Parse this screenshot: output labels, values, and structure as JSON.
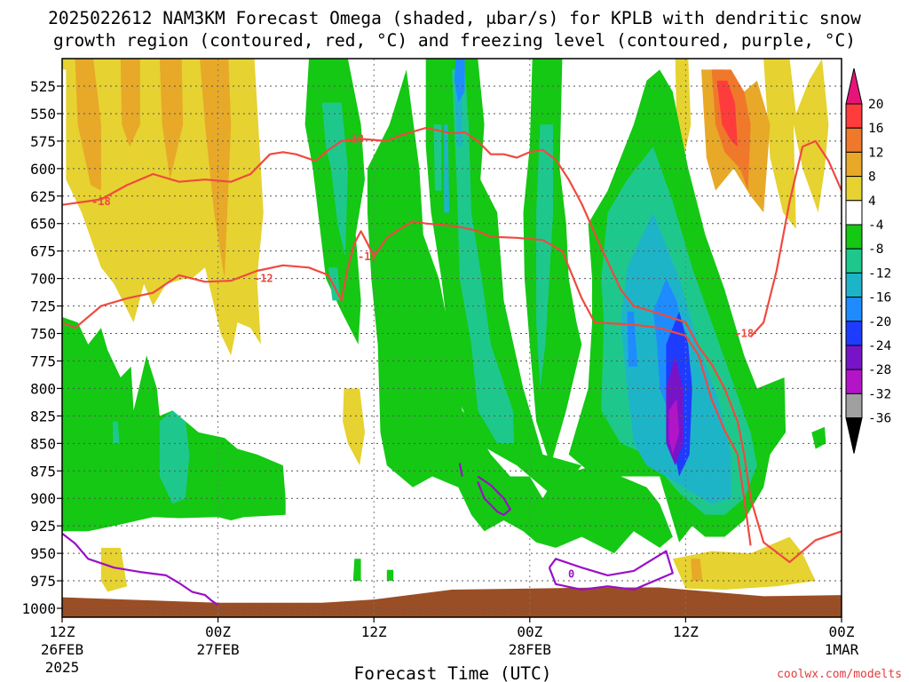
{
  "title": {
    "line1": "2025022612 NAM3KM Forecast Omega (shaded, μbar/s) for KPLB with dendritic snow",
    "line2": "growth region (contoured, red, °C) and freezing level (contoured, purple, °C)"
  },
  "xlabel": "Forecast Time (UTC)",
  "credit": "coolwx.com/modelts",
  "colors": {
    "ground": "#9a4e26",
    "dendritic_contour": "#ef4a40",
    "freezing_contour": "#9a10c6"
  },
  "chart_data": {
    "type": "heatmap",
    "title": "2025022612 NAM3KM Forecast Omega (shaded, μbar/s) for KPLB with dendritic snow growth region (contoured, red, °C) and freezing level (contoured, purple, °C)",
    "xlabel": "Forecast Time (UTC)",
    "ylabel": "",
    "x_ticks": [
      {
        "hour": 0,
        "label": "12Z",
        "sub": "26FEB",
        "sub2": "2025"
      },
      {
        "hour": 12,
        "label": "00Z",
        "sub": "27FEB",
        "sub2": ""
      },
      {
        "hour": 24,
        "label": "12Z",
        "sub": "",
        "sub2": ""
      },
      {
        "hour": 36,
        "label": "00Z",
        "sub": "28FEB",
        "sub2": ""
      },
      {
        "hour": 48,
        "label": "12Z",
        "sub": "",
        "sub2": ""
      },
      {
        "hour": 60,
        "label": "00Z",
        "sub": "1MAR",
        "sub2": ""
      }
    ],
    "xlim_hours": [
      0,
      60
    ],
    "y_ticks": [
      525,
      550,
      575,
      600,
      625,
      650,
      675,
      700,
      725,
      750,
      775,
      800,
      825,
      850,
      875,
      900,
      925,
      950,
      975,
      1000
    ],
    "ylim_hpa": [
      500,
      1005
    ],
    "y_inverted": true,
    "grid": true,
    "colorbar": {
      "labels": [
        "20",
        "16",
        "12",
        "8",
        "4",
        "-4",
        "-8",
        "-12",
        "-16",
        "-20",
        "-24",
        "-28",
        "-32",
        "-36"
      ],
      "bins": [
        {
          "range": "16 to 20",
          "color": "#ff3c3c"
        },
        {
          "range": "12 to 16",
          "color": "#f0782a"
        },
        {
          "range": "8 to 12",
          "color": "#e8a828"
        },
        {
          "range": "4 to 8",
          "color": "#e6d230"
        },
        {
          "range": "-4 to 4",
          "color": "#ffffff"
        },
        {
          "range": "-8 to -4",
          "color": "#14c814"
        },
        {
          "range": "-12 to -8",
          "color": "#1ec88c"
        },
        {
          "range": "-16 to -12",
          "color": "#1eb4c8"
        },
        {
          "range": "-20 to -16",
          "color": "#1e8cff"
        },
        {
          "range": "-24 to -20",
          "color": "#1e3cff"
        },
        {
          "range": "-28 to -24",
          "color": "#7814c8"
        },
        {
          "range": "-32 to -28",
          "color": "#b414c8"
        },
        {
          "range": "-36 to -32",
          "color": "#a0a0a0"
        }
      ],
      "max_arrow_color": "#e6147a",
      "min_arrow_color": "#000000"
    },
    "contours": {
      "dendritic": {
        "color": "#ef4a40",
        "levels": [
          {
            "label": "-18",
            "points": [
              [
                0,
                633
              ],
              [
                3,
                628
              ],
              [
                5,
                615
              ],
              [
                7,
                605
              ],
              [
                9,
                612
              ],
              [
                11,
                610
              ],
              [
                13,
                612
              ],
              [
                14.5,
                605
              ],
              [
                16,
                587
              ],
              [
                17,
                585
              ],
              [
                18,
                587
              ],
              [
                19.5,
                593
              ],
              [
                20.5,
                583
              ],
              [
                21.5,
                575
              ],
              [
                23,
                573
              ],
              [
                25,
                575
              ],
              [
                26,
                570
              ],
              [
                28,
                563
              ],
              [
                30,
                568
              ],
              [
                31,
                567
              ],
              [
                32,
                575
              ],
              [
                33,
                587
              ],
              [
                34,
                587
              ],
              [
                35,
                590
              ],
              [
                36,
                585
              ],
              [
                37,
                583
              ],
              [
                38,
                592
              ],
              [
                39,
                610
              ],
              [
                40,
                632
              ],
              [
                41.5,
                672
              ],
              [
                43,
                710
              ],
              [
                44,
                725
              ],
              [
                46,
                732
              ],
              [
                48,
                740
              ],
              [
                49,
                762
              ],
              [
                50,
                778
              ],
              [
                51,
                800
              ],
              [
                52,
                830
              ],
              [
                52.5,
                860
              ],
              [
                53,
                900
              ],
              [
                54,
                940
              ],
              [
                56,
                958
              ],
              [
                58,
                938
              ],
              [
                60,
                930
              ]
            ]
          },
          {
            "label": "-12",
            "points": [
              [
                0,
                740
              ],
              [
                1,
                745
              ],
              [
                3,
                725
              ],
              [
                5,
                718
              ],
              [
                7,
                713
              ],
              [
                9,
                697
              ],
              [
                11,
                703
              ],
              [
                13,
                702
              ],
              [
                15,
                693
              ],
              [
                17,
                688
              ],
              [
                19,
                690
              ],
              [
                20.5,
                697
              ],
              [
                21.5,
                720
              ],
              [
                22,
                690
              ],
              [
                22.5,
                668
              ],
              [
                23,
                657
              ],
              [
                23.5,
                668
              ],
              [
                24,
                680
              ],
              [
                25,
                663
              ],
              [
                26,
                655
              ],
              [
                27,
                648
              ],
              [
                28,
                650
              ],
              [
                30,
                652
              ],
              [
                31,
                654
              ],
              [
                32,
                657
              ],
              [
                33,
                662
              ],
              [
                35,
                663
              ],
              [
                37,
                665
              ],
              [
                38.5,
                675
              ],
              [
                40,
                718
              ],
              [
                41,
                740
              ],
              [
                44,
                742
              ],
              [
                46,
                745
              ],
              [
                48,
                752
              ],
              [
                49,
                770
              ],
              [
                50,
                810
              ],
              [
                51,
                838
              ],
              [
                52,
                860
              ],
              [
                52.5,
                900
              ],
              [
                53,
                943
              ]
            ]
          },
          {
            "label": "-18",
            "points": [
              [
                53,
                753
              ],
              [
                54,
                740
              ],
              [
                55,
                693
              ],
              [
                56,
                630
              ],
              [
                57,
                580
              ],
              [
                58,
                575
              ],
              [
                59,
                593
              ],
              [
                60,
                620
              ]
            ]
          }
        ],
        "labels": [
          {
            "text": "-18",
            "hour": 3,
            "hpa": 630
          },
          {
            "text": "-18",
            "hour": 22.5,
            "hpa": 573
          },
          {
            "text": "-12",
            "hour": 15.5,
            "hpa": 700
          },
          {
            "text": "-12",
            "hour": 23.5,
            "hpa": 680
          },
          {
            "text": "-18",
            "hour": 52.5,
            "hpa": 750
          }
        ]
      },
      "freezing": {
        "color": "#9a10c6",
        "levels": [
          {
            "label": "0",
            "points": [
              [
                0,
                932
              ],
              [
                1,
                941
              ],
              [
                2,
                955
              ],
              [
                4,
                963
              ],
              [
                6,
                967
              ],
              [
                8,
                970
              ],
              [
                9,
                977
              ],
              [
                10,
                985
              ],
              [
                11,
                988
              ],
              [
                11.5,
                993
              ],
              [
                12,
                997
              ]
            ]
          },
          {
            "label": "0",
            "points": [
              [
                32,
                880
              ],
              [
                33,
                888
              ],
              [
                34,
                900
              ],
              [
                34.5,
                910
              ],
              [
                34,
                915
              ],
              [
                33.5,
                912
              ],
              [
                32.5,
                900
              ],
              [
                32,
                885
              ]
            ]
          },
          {
            "label": "0",
            "points": [
              [
                37.5,
                963
              ],
              [
                38,
                955
              ],
              [
                40,
                963
              ],
              [
                42,
                970
              ],
              [
                44,
                966
              ],
              [
                46.5,
                948
              ],
              [
                47,
                968
              ],
              [
                45,
                978
              ],
              [
                44,
                983
              ],
              [
                42,
                980
              ],
              [
                40,
                983
              ],
              [
                38,
                978
              ],
              [
                37.5,
                963
              ]
            ]
          },
          {
            "label": "0",
            "points": [
              [
                30.6,
                868
              ],
              [
                30.8,
                880
              ]
            ]
          }
        ],
        "labels": [
          {
            "text": "0",
            "hour": 39.2,
            "hpa": 969
          }
        ]
      }
    },
    "ground": {
      "color": "#9a4e26",
      "points": [
        [
          0,
          990
        ],
        [
          12,
          995
        ],
        [
          20,
          995
        ],
        [
          24,
          992
        ],
        [
          30,
          983
        ],
        [
          36,
          982
        ],
        [
          42,
          981
        ],
        [
          46,
          981
        ],
        [
          48,
          983
        ],
        [
          54,
          989
        ],
        [
          60,
          988
        ]
      ]
    }
  }
}
